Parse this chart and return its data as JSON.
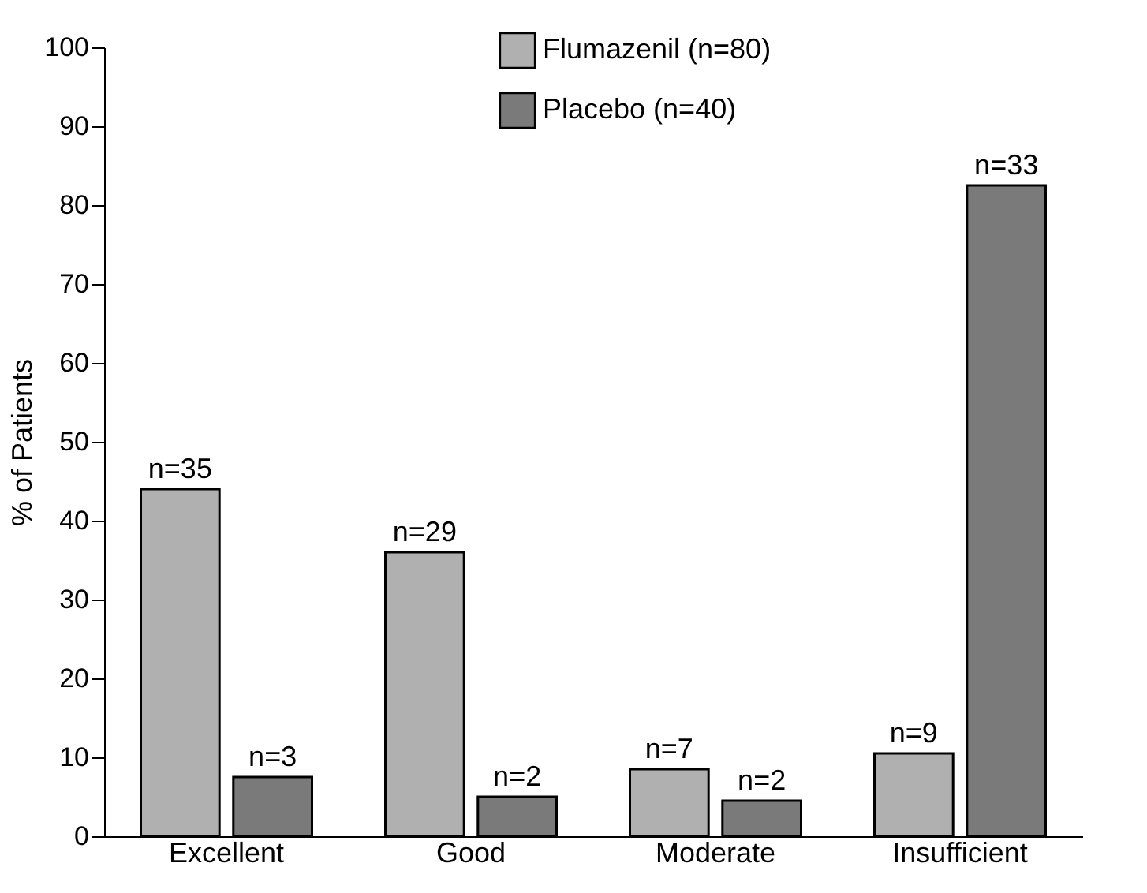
{
  "chart_data": {
    "type": "bar",
    "ylabel": "% of Patients",
    "categories": [
      "Excellent",
      "Good",
      "Moderate",
      "Insufficient"
    ],
    "series": [
      {
        "name": "Flumazenil (n=80)",
        "color": "#b0b0b0",
        "values": [
          44,
          36,
          8.5,
          10.5
        ]
      },
      {
        "name": "Placebo (n=40)",
        "color": "#7a7a7a",
        "values": [
          7.5,
          5,
          4.5,
          82.5
        ]
      }
    ],
    "annotations": [
      {
        "text": "n=35",
        "x": "Excellent",
        "y": 44
      },
      {
        "text": "n=29",
        "x": "Good",
        "y": 36
      },
      {
        "text": "n=7",
        "x": "Moderate",
        "y": 8.5
      },
      {
        "text": "n=9",
        "x": "Insufficient",
        "y": 10.5
      },
      {
        "text": "n=3",
        "x": "Excellent",
        "y": 7.5
      },
      {
        "text": "n=2",
        "x": "Good",
        "y": 5
      },
      {
        "text": "n=2",
        "x": "Moderate",
        "y": 4.5
      },
      {
        "text": "n=33",
        "x": "Insufficient",
        "y": 82.5
      }
    ],
    "ylim": [
      0,
      100
    ],
    "yticks": [
      0,
      10,
      20,
      30,
      40,
      50,
      60,
      70,
      80,
      90,
      100
    ],
    "grid": false,
    "legend": "top"
  }
}
